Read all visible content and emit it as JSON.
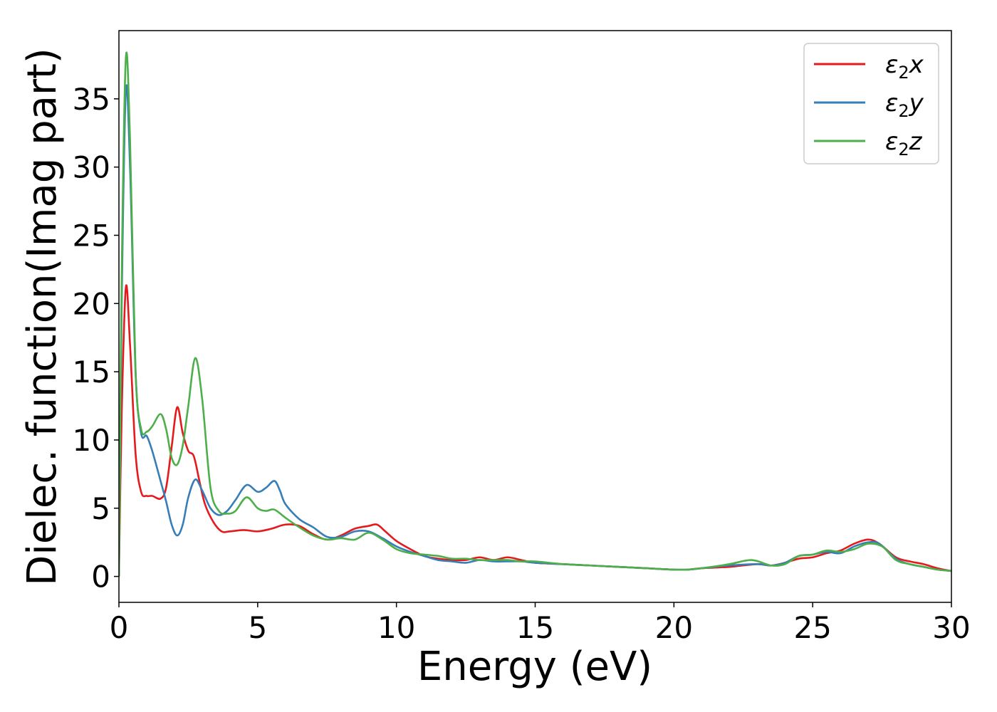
{
  "chart_data": {
    "type": "line",
    "xlabel": "Energy (eV)",
    "ylabel": "Dielec. function(Imag part)",
    "xlim": [
      0,
      30
    ],
    "ylim": [
      -1.9,
      40
    ],
    "xticks": [
      0,
      5,
      10,
      15,
      20,
      25,
      30
    ],
    "yticks": [
      0,
      5,
      10,
      15,
      20,
      25,
      30,
      35
    ],
    "grid": false,
    "legend_position": "top-right",
    "series": [
      {
        "name": "ε2x",
        "name_main": "ε",
        "name_sub": "2",
        "name_var": "x",
        "color": "#e41a1c",
        "points": [
          [
            0,
            0
          ],
          [
            0.1,
            12
          ],
          [
            0.25,
            21.2
          ],
          [
            0.4,
            17
          ],
          [
            0.6,
            9
          ],
          [
            0.8,
            6.2
          ],
          [
            1.0,
            5.9
          ],
          [
            1.2,
            5.9
          ],
          [
            1.5,
            5.7
          ],
          [
            1.7,
            6.5
          ],
          [
            1.9,
            9.5
          ],
          [
            2.1,
            12.4
          ],
          [
            2.3,
            10.5
          ],
          [
            2.5,
            9.2
          ],
          [
            2.7,
            8.8
          ],
          [
            2.9,
            7
          ],
          [
            3.1,
            5.3
          ],
          [
            3.4,
            4.0
          ],
          [
            3.7,
            3.3
          ],
          [
            4.0,
            3.3
          ],
          [
            4.5,
            3.4
          ],
          [
            5.0,
            3.3
          ],
          [
            5.5,
            3.5
          ],
          [
            6.0,
            3.8
          ],
          [
            6.5,
            3.7
          ],
          [
            7.0,
            3.1
          ],
          [
            7.5,
            2.7
          ],
          [
            8.0,
            3.0
          ],
          [
            8.5,
            3.5
          ],
          [
            9.0,
            3.7
          ],
          [
            9.3,
            3.8
          ],
          [
            9.6,
            3.3
          ],
          [
            10.0,
            2.6
          ],
          [
            10.5,
            2.0
          ],
          [
            11.0,
            1.5
          ],
          [
            11.5,
            1.3
          ],
          [
            12.0,
            1.2
          ],
          [
            12.5,
            1.2
          ],
          [
            13.0,
            1.4
          ],
          [
            13.5,
            1.2
          ],
          [
            14.0,
            1.4
          ],
          [
            14.5,
            1.2
          ],
          [
            15.0,
            1.0
          ],
          [
            16.0,
            0.9
          ],
          [
            17.0,
            0.8
          ],
          [
            18.0,
            0.7
          ],
          [
            19.0,
            0.6
          ],
          [
            20.0,
            0.5
          ],
          [
            20.5,
            0.5
          ],
          [
            21.0,
            0.6
          ],
          [
            22.0,
            0.7
          ],
          [
            23.0,
            0.9
          ],
          [
            23.5,
            0.8
          ],
          [
            24.0,
            1.0
          ],
          [
            24.5,
            1.3
          ],
          [
            25.0,
            1.4
          ],
          [
            25.5,
            1.7
          ],
          [
            26.0,
            1.9
          ],
          [
            26.5,
            2.4
          ],
          [
            27.0,
            2.7
          ],
          [
            27.4,
            2.4
          ],
          [
            28.0,
            1.4
          ],
          [
            28.5,
            1.1
          ],
          [
            29.0,
            0.9
          ],
          [
            29.5,
            0.6
          ],
          [
            30.0,
            0.4
          ]
        ]
      },
      {
        "name": "ε2y",
        "name_main": "ε",
        "name_sub": "2",
        "name_var": "y",
        "color": "#377eb8",
        "points": [
          [
            0,
            0
          ],
          [
            0.1,
            20
          ],
          [
            0.25,
            35.6
          ],
          [
            0.4,
            30
          ],
          [
            0.6,
            15
          ],
          [
            0.8,
            10.5
          ],
          [
            1.0,
            10.3
          ],
          [
            1.2,
            9.2
          ],
          [
            1.5,
            7.0
          ],
          [
            1.7,
            5.5
          ],
          [
            1.9,
            3.8
          ],
          [
            2.1,
            3.0
          ],
          [
            2.3,
            3.8
          ],
          [
            2.5,
            5.8
          ],
          [
            2.75,
            7.1
          ],
          [
            3.0,
            6.3
          ],
          [
            3.3,
            5.0
          ],
          [
            3.6,
            4.5
          ],
          [
            3.9,
            4.8
          ],
          [
            4.2,
            5.6
          ],
          [
            4.6,
            6.7
          ],
          [
            5.0,
            6.2
          ],
          [
            5.3,
            6.5
          ],
          [
            5.6,
            7.0
          ],
          [
            5.8,
            6.3
          ],
          [
            6.0,
            5.3
          ],
          [
            6.5,
            4.2
          ],
          [
            7.0,
            3.6
          ],
          [
            7.5,
            2.9
          ],
          [
            8.0,
            2.9
          ],
          [
            8.5,
            3.3
          ],
          [
            9.0,
            3.3
          ],
          [
            9.5,
            2.8
          ],
          [
            10.0,
            2.2
          ],
          [
            10.5,
            1.8
          ],
          [
            11.0,
            1.5
          ],
          [
            11.5,
            1.2
          ],
          [
            12.0,
            1.1
          ],
          [
            12.5,
            1.0
          ],
          [
            13.0,
            1.2
          ],
          [
            13.5,
            1.1
          ],
          [
            14.0,
            1.1
          ],
          [
            14.5,
            1.1
          ],
          [
            15.0,
            1.0
          ],
          [
            16.0,
            0.9
          ],
          [
            17.0,
            0.8
          ],
          [
            18.0,
            0.7
          ],
          [
            19.0,
            0.6
          ],
          [
            20.0,
            0.5
          ],
          [
            20.5,
            0.5
          ],
          [
            21.0,
            0.6
          ],
          [
            22.0,
            0.8
          ],
          [
            23.0,
            0.9
          ],
          [
            23.5,
            0.8
          ],
          [
            24.0,
            1.0
          ],
          [
            24.5,
            1.5
          ],
          [
            25.0,
            1.6
          ],
          [
            25.5,
            1.8
          ],
          [
            26.0,
            1.7
          ],
          [
            26.5,
            2.2
          ],
          [
            27.0,
            2.5
          ],
          [
            27.4,
            2.4
          ],
          [
            28.0,
            1.3
          ],
          [
            28.5,
            0.9
          ],
          [
            29.0,
            0.7
          ],
          [
            29.5,
            0.5
          ],
          [
            30.0,
            0.4
          ]
        ]
      },
      {
        "name": "ε2z",
        "name_main": "ε",
        "name_sub": "2",
        "name_var": "z",
        "color": "#4daf4a",
        "points": [
          [
            0,
            0
          ],
          [
            0.1,
            22
          ],
          [
            0.25,
            38
          ],
          [
            0.4,
            32
          ],
          [
            0.6,
            15
          ],
          [
            0.8,
            10.8
          ],
          [
            1.0,
            10.6
          ],
          [
            1.2,
            11.0
          ],
          [
            1.5,
            11.9
          ],
          [
            1.7,
            10.8
          ],
          [
            1.9,
            8.7
          ],
          [
            2.1,
            8.2
          ],
          [
            2.3,
            9.6
          ],
          [
            2.5,
            12.5
          ],
          [
            2.75,
            16.0
          ],
          [
            3.0,
            13.0
          ],
          [
            3.3,
            6.5
          ],
          [
            3.6,
            4.8
          ],
          [
            3.9,
            4.6
          ],
          [
            4.2,
            4.8
          ],
          [
            4.6,
            5.8
          ],
          [
            5.0,
            5.0
          ],
          [
            5.3,
            4.8
          ],
          [
            5.6,
            4.9
          ],
          [
            6.0,
            4.3
          ],
          [
            6.5,
            3.6
          ],
          [
            7.0,
            3.0
          ],
          [
            7.5,
            2.7
          ],
          [
            8.0,
            2.8
          ],
          [
            8.5,
            2.7
          ],
          [
            9.0,
            3.2
          ],
          [
            9.5,
            2.7
          ],
          [
            10.0,
            2.0
          ],
          [
            10.5,
            1.7
          ],
          [
            11.0,
            1.6
          ],
          [
            11.5,
            1.5
          ],
          [
            12.0,
            1.3
          ],
          [
            12.5,
            1.3
          ],
          [
            13.0,
            1.2
          ],
          [
            13.5,
            1.2
          ],
          [
            14.0,
            1.2
          ],
          [
            14.5,
            1.1
          ],
          [
            15.0,
            1.1
          ],
          [
            16.0,
            0.9
          ],
          [
            17.0,
            0.8
          ],
          [
            18.0,
            0.7
          ],
          [
            19.0,
            0.6
          ],
          [
            20.0,
            0.5
          ],
          [
            20.5,
            0.5
          ],
          [
            21.0,
            0.6
          ],
          [
            22.0,
            0.9
          ],
          [
            22.8,
            1.2
          ],
          [
            23.5,
            0.8
          ],
          [
            24.0,
            0.9
          ],
          [
            24.5,
            1.5
          ],
          [
            25.0,
            1.6
          ],
          [
            25.5,
            1.9
          ],
          [
            26.0,
            1.8
          ],
          [
            26.5,
            2.0
          ],
          [
            27.0,
            2.4
          ],
          [
            27.5,
            2.2
          ],
          [
            28.0,
            1.2
          ],
          [
            28.5,
            0.9
          ],
          [
            29.0,
            0.7
          ],
          [
            29.5,
            0.5
          ],
          [
            30.0,
            0.4
          ]
        ]
      }
    ]
  }
}
